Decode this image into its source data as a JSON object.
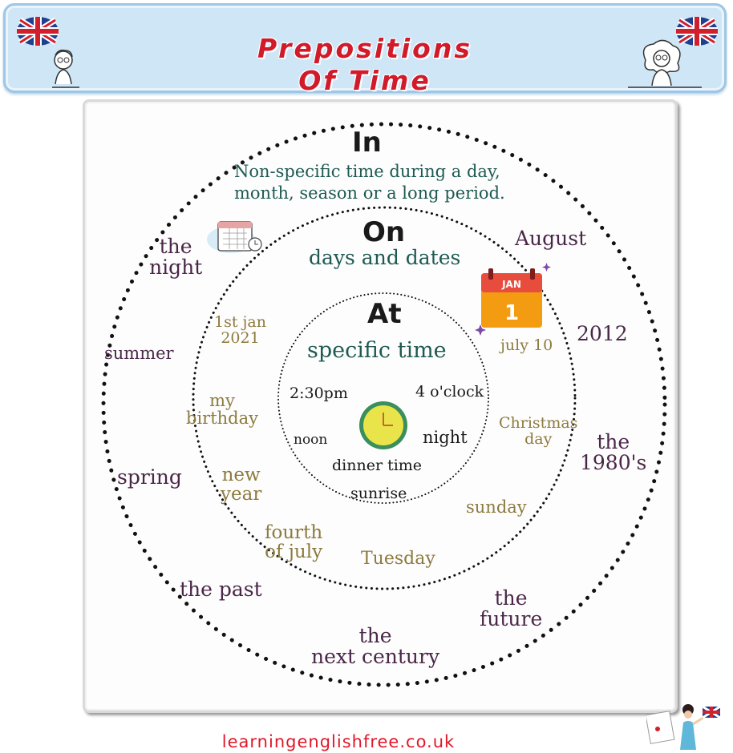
{
  "header": {
    "title_line1": "Prepositions",
    "title_line2": "Of Time",
    "flag_icon": "uk-flag-icon",
    "colors": {
      "title": "#d11a2a",
      "banner": "#cfe6f7"
    }
  },
  "diagram": {
    "in": {
      "heading": "In",
      "description_line1": "Non-specific time during a day,",
      "description_line2": "month, season or a long period.",
      "examples": {
        "the_night": [
          "the",
          "night"
        ],
        "august": "August",
        "year_2012": "2012",
        "summer": "summer",
        "the_1980s": [
          "the",
          "1980's"
        ],
        "spring": "spring",
        "the_past": "the past",
        "the_future": [
          "the",
          "future"
        ],
        "next_century": [
          "the",
          "next century"
        ]
      }
    },
    "on": {
      "heading": "On",
      "description": "days and dates",
      "calendar_month": "JAN",
      "calendar_day": "1",
      "examples": {
        "first_jan": [
          "1st jan",
          "2021"
        ],
        "july_10": "july 10",
        "my_birthday": [
          "my",
          "birthday"
        ],
        "christmas": [
          "Christmas",
          "day"
        ],
        "new_year": [
          "new",
          "year"
        ],
        "sunday": "sunday",
        "fourth_july": [
          "fourth",
          "of july"
        ],
        "tuesday": "Tuesday"
      }
    },
    "at": {
      "heading": "At",
      "description": "specific time",
      "examples": {
        "time_230": "2:30pm",
        "four_oclock": "4 o'clock",
        "noon": "noon",
        "night": "night",
        "dinner_time": "dinner time",
        "sunrise": "sunrise"
      }
    }
  },
  "footer": {
    "website": "learningenglishfree.co.uk"
  }
}
